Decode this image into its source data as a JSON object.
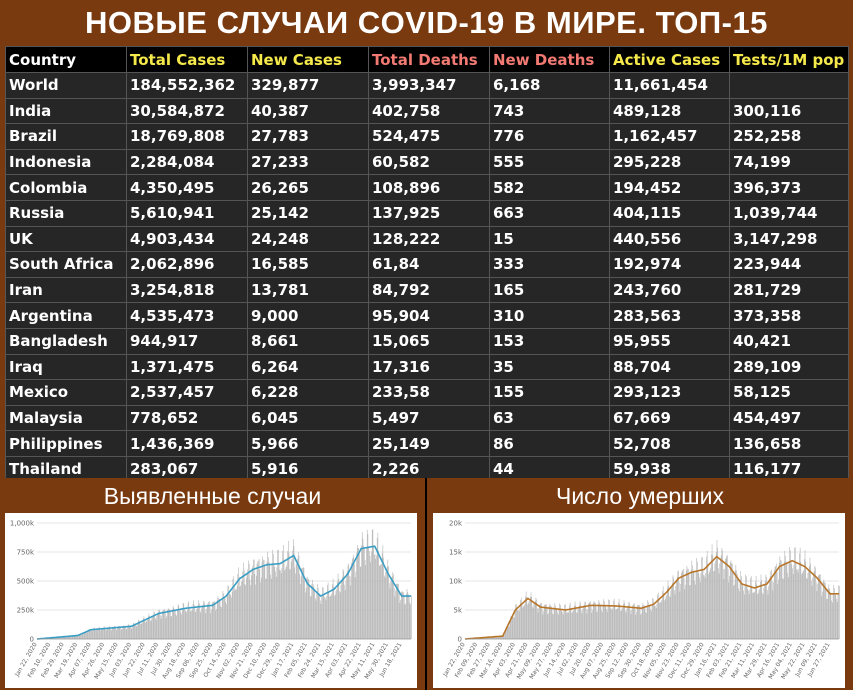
{
  "title": "НОВЫЕ СЛУЧАИ COVID-19 В МИРЕ. ТОП-15",
  "table": {
    "headers": [
      "Country",
      "Total Cases",
      "New Cases",
      "Total Deaths",
      "New Deaths",
      "Active Cases",
      "Tests/1M pop"
    ],
    "rows": [
      [
        "World",
        "184,552,362",
        "329,877",
        "3,993,347",
        "6,168",
        "11,661,454",
        ""
      ],
      [
        "India",
        "30,584,872",
        "40,387",
        "402,758",
        "743",
        "489,128",
        "300,116"
      ],
      [
        "Brazil",
        "18,769,808",
        "27,783",
        "524,475",
        "776",
        "1,162,457",
        "252,258"
      ],
      [
        "Indonesia",
        "2,284,084",
        "27,233",
        "60,582",
        "555",
        "295,228",
        "74,199"
      ],
      [
        "Colombia",
        "4,350,495",
        "26,265",
        "108,896",
        "582",
        "194,452",
        "396,373"
      ],
      [
        "Russia",
        "5,610,941",
        "25,142",
        "137,925",
        "663",
        "404,115",
        "1,039,744"
      ],
      [
        "UK",
        "4,903,434",
        "24,248",
        "128,222",
        "15",
        "440,556",
        "3,147,298"
      ],
      [
        "South Africa",
        "2,062,896",
        "16,585",
        "61,84",
        "333",
        "192,974",
        "223,944"
      ],
      [
        "Iran",
        "3,254,818",
        "13,781",
        "84,792",
        "165",
        "243,760",
        "281,729"
      ],
      [
        "Argentina",
        "4,535,473",
        "9,000",
        "95,904",
        "310",
        "283,563",
        "373,358"
      ],
      [
        "Bangladesh",
        "944,917",
        "8,661",
        "15,065",
        "153",
        "95,955",
        "40,421"
      ],
      [
        "Iraq",
        "1,371,475",
        "6,264",
        "17,316",
        "35",
        "88,704",
        "289,109"
      ],
      [
        "Mexico",
        "2,537,457",
        "6,228",
        "233,58",
        "155",
        "293,123",
        "58,125"
      ],
      [
        "Malaysia",
        "778,652",
        "6,045",
        "5,497",
        "63",
        "67,669",
        "454,497"
      ],
      [
        "Philippines",
        "1,436,369",
        "5,966",
        "25,149",
        "86",
        "52,708",
        "136,658"
      ],
      [
        "Thailand",
        "283,067",
        "5,916",
        "2,226",
        "44",
        "59,938",
        "116,177"
      ]
    ]
  },
  "panels": {
    "cases_title": "Выявленные случаи",
    "deaths_title": "Число умерших"
  },
  "colors": {
    "background": "#7a3a10",
    "table_cell": "#262626",
    "header_yellow": "#f5e84a",
    "header_red": "#f27a73",
    "bars": "#b5b5b5",
    "cases_line": "#3a9ec4",
    "deaths_line": "#b8762a"
  },
  "chart_data": [
    {
      "type": "bar",
      "overlay": "line (7-day moving average)",
      "ylim": [
        0,
        1000000
      ],
      "y_ticks": [
        "0",
        "250k",
        "500k",
        "750k",
        "1,000k"
      ],
      "x_ticks": [
        "Jan 22, 2020",
        "Feb 10, 2020",
        "Feb 29, 2020",
        "Mar 19, 2020",
        "Apr 07, 2020",
        "Apr 26, 2020",
        "May 15, 2020",
        "Jun 03, 2020",
        "Jun 22, 2020",
        "Jul 11, 2020",
        "Jul 30, 2020",
        "Aug 18, 2020",
        "Sep 06, 2020",
        "Sep 25, 2020",
        "Oct 14, 2020",
        "Nov 02, 2020",
        "Nov 21, 2020",
        "Dec 10, 2020",
        "Dec 29, 2020",
        "Jan 17, 2021",
        "Feb 05, 2021",
        "Feb 24, 2021",
        "Mar 15, 2021",
        "Apr 03, 2021",
        "Apr 22, 2021",
        "May 11, 2021",
        "May 30, 2021",
        "Jun 18, 2021"
      ],
      "series_trend": [
        {
          "x": "Jan 22, 2020",
          "y": 0
        },
        {
          "x": "Mar 19, 2020",
          "y": 30000
        },
        {
          "x": "Apr 07, 2020",
          "y": 80000
        },
        {
          "x": "Jun 03, 2020",
          "y": 110000
        },
        {
          "x": "Jul 11, 2020",
          "y": 220000
        },
        {
          "x": "Aug 18, 2020",
          "y": 265000
        },
        {
          "x": "Sep 25, 2020",
          "y": 290000
        },
        {
          "x": "Oct 14, 2020",
          "y": 370000
        },
        {
          "x": "Nov 02, 2020",
          "y": 520000
        },
        {
          "x": "Nov 21, 2020",
          "y": 600000
        },
        {
          "x": "Dec 10, 2020",
          "y": 640000
        },
        {
          "x": "Dec 29, 2020",
          "y": 650000
        },
        {
          "x": "Jan 17, 2021",
          "y": 720000
        },
        {
          "x": "Feb 05, 2021",
          "y": 480000
        },
        {
          "x": "Feb 24, 2021",
          "y": 370000
        },
        {
          "x": "Mar 15, 2021",
          "y": 430000
        },
        {
          "x": "Apr 03, 2021",
          "y": 560000
        },
        {
          "x": "Apr 22, 2021",
          "y": 780000
        },
        {
          "x": "May 11, 2021",
          "y": 800000
        },
        {
          "x": "May 30, 2021",
          "y": 560000
        },
        {
          "x": "Jun 18, 2021",
          "y": 370000
        }
      ]
    },
    {
      "type": "bar",
      "overlay": "line (7-day moving average)",
      "ylim": [
        0,
        20000
      ],
      "y_ticks": [
        "0",
        "5k",
        "10k",
        "15k",
        "20k"
      ],
      "x_ticks": [
        "Jan 22, 2020",
        "Feb 09, 2020",
        "Feb 27, 2020",
        "Mar 16, 2020",
        "Apr 03, 2020",
        "Apr 21, 2020",
        "May 09, 2020",
        "May 27, 2020",
        "Jun 14, 2020",
        "Jul 02, 2020",
        "Jul 20, 2020",
        "Aug 07, 2020",
        "Aug 25, 2020",
        "Sep 12, 2020",
        "Sep 30, 2020",
        "Oct 18, 2020",
        "Nov 05, 2020",
        "Nov 23, 2020",
        "Dec 11, 2020",
        "Dec 29, 2020",
        "Jan 16, 2021",
        "Feb 03, 2021",
        "Feb 21, 2021",
        "Mar 11, 2021",
        "Mar 29, 2021",
        "Apr 16, 2021",
        "May 04, 2021",
        "May 22, 2021",
        "Jun 09, 2021",
        "Jun 27, 2021"
      ],
      "series_trend": [
        {
          "x": "Jan 22, 2020",
          "y": 0
        },
        {
          "x": "Mar 16, 2020",
          "y": 500
        },
        {
          "x": "Apr 03, 2020",
          "y": 5000
        },
        {
          "x": "Apr 21, 2020",
          "y": 7000
        },
        {
          "x": "May 09, 2020",
          "y": 5500
        },
        {
          "x": "Jun 14, 2020",
          "y": 5000
        },
        {
          "x": "Jul 20, 2020",
          "y": 5800
        },
        {
          "x": "Aug 25, 2020",
          "y": 5700
        },
        {
          "x": "Sep 30, 2020",
          "y": 5300
        },
        {
          "x": "Oct 18, 2020",
          "y": 6000
        },
        {
          "x": "Nov 05, 2020",
          "y": 8000
        },
        {
          "x": "Nov 23, 2020",
          "y": 10500
        },
        {
          "x": "Dec 11, 2020",
          "y": 11500
        },
        {
          "x": "Dec 29, 2020",
          "y": 12000
        },
        {
          "x": "Jan 16, 2021",
          "y": 14200
        },
        {
          "x": "Feb 03, 2021",
          "y": 12500
        },
        {
          "x": "Feb 21, 2021",
          "y": 9500
        },
        {
          "x": "Mar 11, 2021",
          "y": 8800
        },
        {
          "x": "Mar 29, 2021",
          "y": 9500
        },
        {
          "x": "Apr 16, 2021",
          "y": 12500
        },
        {
          "x": "May 04, 2021",
          "y": 13500
        },
        {
          "x": "May 22, 2021",
          "y": 12500
        },
        {
          "x": "Jun 09, 2021",
          "y": 10500
        },
        {
          "x": "Jun 27, 2021",
          "y": 7800
        }
      ]
    }
  ]
}
